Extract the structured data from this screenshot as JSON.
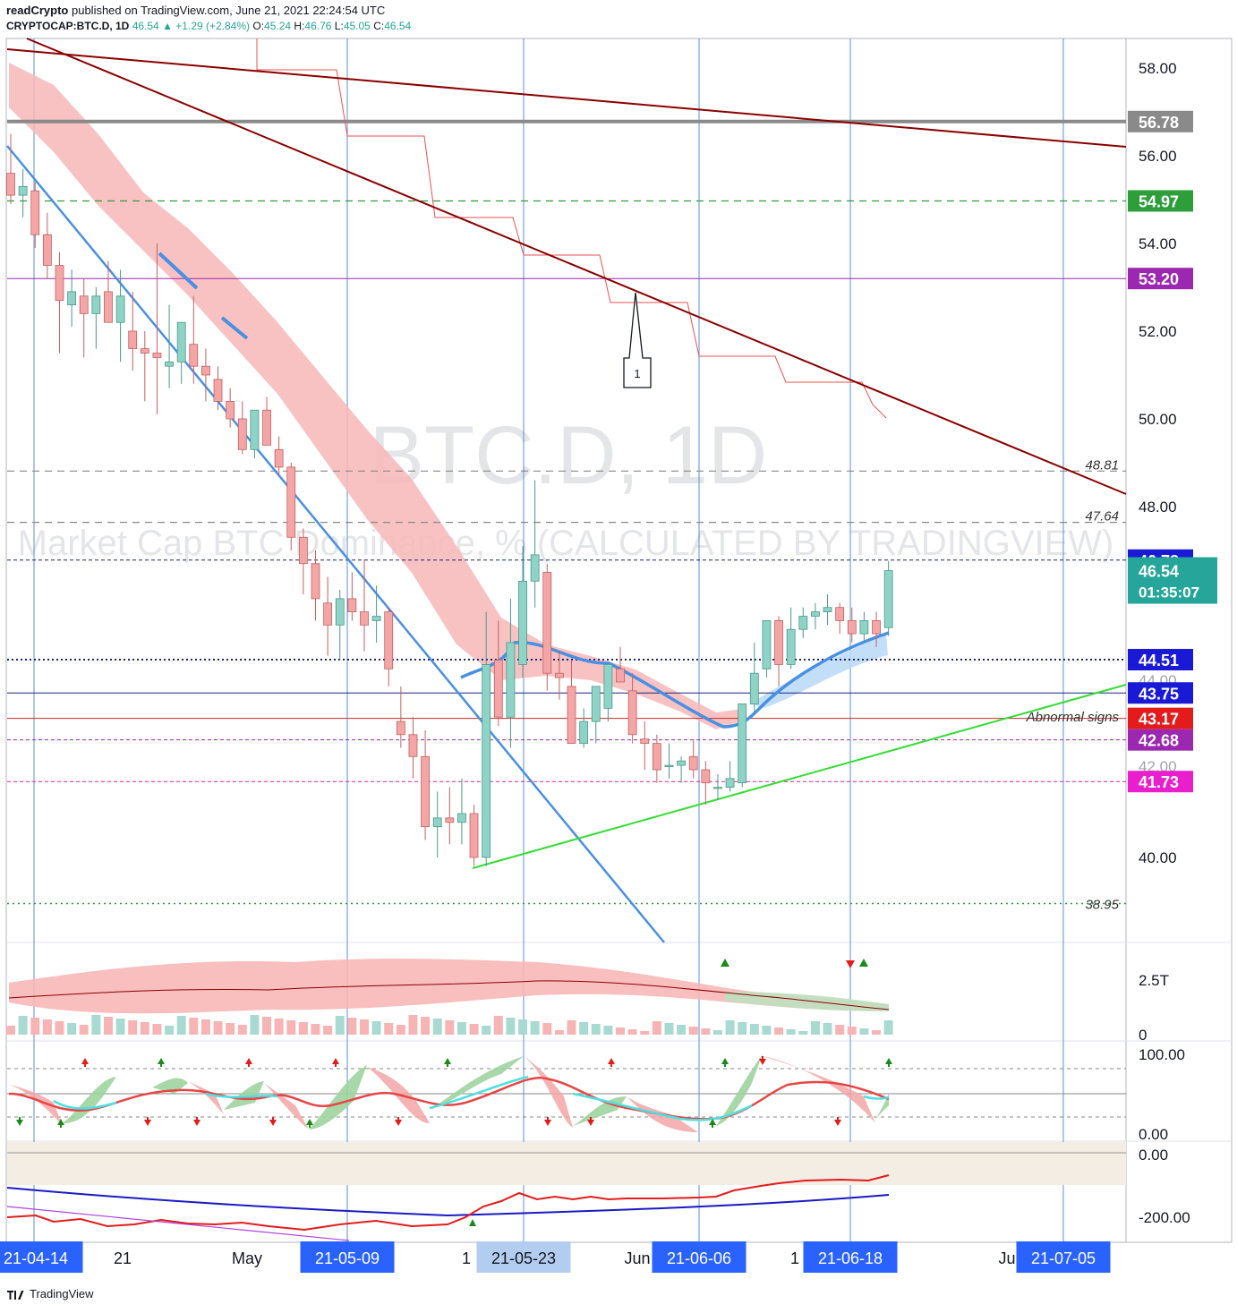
{
  "header": {
    "publisher": "readCrypto",
    "published_text": "published on TradingView.com, June 21, 2021 22:24:54 UTC",
    "symbol": "CRYPTOCAP:BTC.D, 1D",
    "last": "46.54",
    "change": "+1.29 (+2.84%)",
    "o_label": "O:",
    "o": "45.24",
    "h_label": "H:",
    "h": "46.76",
    "l_label": "L:",
    "l": "45.05",
    "c_label": "C:",
    "c": "46.54"
  },
  "footer": {
    "brand": "TradingView"
  },
  "colors": {
    "up": "#26a69a",
    "down": "#ef5350",
    "up_candle": "#8fd3c6",
    "down_candle": "#f4a6a6",
    "trend_dark": "#8b0000",
    "trend_blue": "#4a90e2",
    "trend_green": "#33dd33",
    "grey_level": "#8a8a8a",
    "purple": "#9c27b0",
    "magenta": "#e91ecc"
  },
  "chart_data": [
    {
      "type": "candlestick",
      "title": "BTC.D, 1D",
      "subtitle": "Market Cap BTC Dominance, % (CALCULATED BY TRADINGVIEW)",
      "ylim": [
        38.0,
        58.6
      ],
      "y_ticks": [
        "58.00",
        "56.00",
        "54.00",
        "52.00",
        "50.00",
        "48.00",
        "40.00"
      ],
      "x_ticks": [
        "21-04-14",
        "21",
        "May",
        "21-05-09",
        "1",
        "21-05-23",
        "Jun",
        "21-06-06",
        "1",
        "21-06-18",
        "Ju",
        "21-07-05"
      ],
      "highlighted_x_ticks": [
        "21-04-14",
        "21-05-09",
        "21-05-23",
        "21-06-06",
        "21-06-18",
        "21-07-05"
      ],
      "candles": [
        {
          "o": 55.6,
          "h": 56.5,
          "l": 54.9,
          "c": 55.1
        },
        {
          "o": 55.1,
          "h": 55.7,
          "l": 54.6,
          "c": 55.3
        },
        {
          "o": 55.2,
          "h": 55.4,
          "l": 53.9,
          "c": 54.2
        },
        {
          "o": 54.2,
          "h": 54.7,
          "l": 53.2,
          "c": 53.5
        },
        {
          "o": 53.5,
          "h": 53.8,
          "l": 51.5,
          "c": 52.7
        },
        {
          "o": 52.6,
          "h": 53.4,
          "l": 52.1,
          "c": 52.9
        },
        {
          "o": 52.8,
          "h": 53.2,
          "l": 51.4,
          "c": 52.4
        },
        {
          "o": 52.4,
          "h": 53.0,
          "l": 51.6,
          "c": 52.8
        },
        {
          "o": 52.9,
          "h": 53.6,
          "l": 52.3,
          "c": 52.2
        },
        {
          "o": 52.2,
          "h": 53.4,
          "l": 51.3,
          "c": 52.8
        },
        {
          "o": 52.0,
          "h": 52.9,
          "l": 51.1,
          "c": 51.6
        },
        {
          "o": 51.6,
          "h": 52.0,
          "l": 50.4,
          "c": 51.5
        },
        {
          "o": 51.5,
          "h": 54.0,
          "l": 50.1,
          "c": 51.4
        },
        {
          "o": 51.2,
          "h": 52.6,
          "l": 50.7,
          "c": 51.3
        },
        {
          "o": 51.3,
          "h": 52.2,
          "l": 50.8,
          "c": 52.2
        },
        {
          "o": 51.7,
          "h": 52.8,
          "l": 50.8,
          "c": 51.2
        },
        {
          "o": 51.2,
          "h": 51.6,
          "l": 50.4,
          "c": 51.0
        },
        {
          "o": 50.9,
          "h": 51.2,
          "l": 50.2,
          "c": 50.4
        },
        {
          "o": 50.4,
          "h": 50.7,
          "l": 49.8,
          "c": 50.0
        },
        {
          "o": 50.0,
          "h": 50.4,
          "l": 49.2,
          "c": 49.3
        },
        {
          "o": 49.3,
          "h": 50.2,
          "l": 49.1,
          "c": 50.2
        },
        {
          "o": 50.2,
          "h": 50.5,
          "l": 49.4,
          "c": 49.4
        },
        {
          "o": 49.3,
          "h": 49.6,
          "l": 48.7,
          "c": 48.9
        },
        {
          "o": 48.9,
          "h": 49.0,
          "l": 47.0,
          "c": 47.3
        },
        {
          "o": 47.3,
          "h": 47.5,
          "l": 46.0,
          "c": 46.7
        },
        {
          "o": 46.7,
          "h": 47.0,
          "l": 45.4,
          "c": 45.9
        },
        {
          "o": 45.8,
          "h": 46.4,
          "l": 44.6,
          "c": 45.3
        },
        {
          "o": 45.3,
          "h": 46.1,
          "l": 44.5,
          "c": 45.9
        },
        {
          "o": 45.9,
          "h": 46.5,
          "l": 45.4,
          "c": 45.6
        },
        {
          "o": 45.6,
          "h": 46.8,
          "l": 44.7,
          "c": 45.3
        },
        {
          "o": 45.4,
          "h": 46.2,
          "l": 44.9,
          "c": 45.5
        },
        {
          "o": 45.6,
          "h": 45.7,
          "l": 43.9,
          "c": 44.3
        },
        {
          "o": 43.1,
          "h": 43.9,
          "l": 42.5,
          "c": 42.8
        },
        {
          "o": 42.8,
          "h": 43.2,
          "l": 41.8,
          "c": 42.3
        },
        {
          "o": 42.3,
          "h": 42.9,
          "l": 40.4,
          "c": 40.7
        },
        {
          "o": 40.7,
          "h": 41.5,
          "l": 40.0,
          "c": 40.9
        },
        {
          "o": 40.9,
          "h": 41.6,
          "l": 40.3,
          "c": 40.8
        },
        {
          "o": 40.8,
          "h": 41.8,
          "l": 40.3,
          "c": 41.0
        },
        {
          "o": 41.0,
          "h": 41.2,
          "l": 39.8,
          "c": 40.0
        },
        {
          "o": 40.0,
          "h": 45.6,
          "l": 39.8,
          "c": 44.4
        },
        {
          "o": 44.5,
          "h": 45.4,
          "l": 43.0,
          "c": 43.2
        },
        {
          "o": 43.2,
          "h": 45.9,
          "l": 42.5,
          "c": 44.9
        },
        {
          "o": 44.4,
          "h": 47.1,
          "l": 44.1,
          "c": 46.3
        },
        {
          "o": 46.3,
          "h": 48.6,
          "l": 45.7,
          "c": 46.9
        },
        {
          "o": 46.5,
          "h": 46.7,
          "l": 43.8,
          "c": 44.2
        },
        {
          "o": 44.2,
          "h": 44.7,
          "l": 43.6,
          "c": 44.1
        },
        {
          "o": 43.9,
          "h": 44.5,
          "l": 42.6,
          "c": 42.6
        },
        {
          "o": 42.6,
          "h": 43.4,
          "l": 42.5,
          "c": 43.1
        },
        {
          "o": 43.1,
          "h": 43.9,
          "l": 42.6,
          "c": 43.9
        },
        {
          "o": 43.4,
          "h": 44.4,
          "l": 43.1,
          "c": 44.4
        },
        {
          "o": 44.3,
          "h": 44.8,
          "l": 44.0,
          "c": 44.0
        },
        {
          "o": 43.8,
          "h": 44.2,
          "l": 42.6,
          "c": 42.8
        },
        {
          "o": 42.7,
          "h": 43.1,
          "l": 42.0,
          "c": 42.6
        },
        {
          "o": 42.6,
          "h": 42.8,
          "l": 41.7,
          "c": 42.0
        },
        {
          "o": 42.1,
          "h": 42.6,
          "l": 41.8,
          "c": 42.1
        },
        {
          "o": 42.1,
          "h": 42.3,
          "l": 41.7,
          "c": 42.2
        },
        {
          "o": 42.3,
          "h": 42.7,
          "l": 41.8,
          "c": 42.0
        },
        {
          "o": 42.0,
          "h": 42.2,
          "l": 41.2,
          "c": 41.7
        },
        {
          "o": 41.6,
          "h": 41.9,
          "l": 41.3,
          "c": 41.6
        },
        {
          "o": 41.6,
          "h": 42.2,
          "l": 41.5,
          "c": 41.8
        },
        {
          "o": 41.7,
          "h": 43.5,
          "l": 41.6,
          "c": 43.5
        },
        {
          "o": 43.5,
          "h": 44.9,
          "l": 43.3,
          "c": 44.2
        },
        {
          "o": 44.3,
          "h": 45.4,
          "l": 44.1,
          "c": 45.4
        },
        {
          "o": 45.4,
          "h": 45.5,
          "l": 43.9,
          "c": 44.4
        },
        {
          "o": 44.4,
          "h": 45.7,
          "l": 44.3,
          "c": 45.2
        },
        {
          "o": 45.2,
          "h": 45.7,
          "l": 45.0,
          "c": 45.5
        },
        {
          "o": 45.5,
          "h": 45.8,
          "l": 45.2,
          "c": 45.6
        },
        {
          "o": 45.6,
          "h": 46.0,
          "l": 45.3,
          "c": 45.7
        },
        {
          "o": 45.7,
          "h": 45.8,
          "l": 45.1,
          "c": 45.4
        },
        {
          "o": 45.4,
          "h": 45.7,
          "l": 44.9,
          "c": 45.1
        },
        {
          "o": 45.1,
          "h": 45.6,
          "l": 44.9,
          "c": 45.4
        },
        {
          "o": 45.4,
          "h": 45.6,
          "l": 44.8,
          "c": 45.1
        },
        {
          "o": 45.24,
          "h": 46.76,
          "l": 45.05,
          "c": 46.54
        }
      ],
      "levels": [
        {
          "value": 56.78,
          "label": "56.78",
          "style": "grey-thick"
        },
        {
          "value": 54.97,
          "label": "54.97",
          "style": "green-dash"
        },
        {
          "value": 53.2,
          "label": "53.20",
          "style": "purple-solid"
        },
        {
          "value": 48.81,
          "label": "48.81",
          "style": "grey-dash"
        },
        {
          "value": 47.64,
          "label": "47.64",
          "style": "grey-dash"
        },
        {
          "value": 46.78,
          "label": "46.78",
          "style": "navy-dash"
        },
        {
          "value": 44.51,
          "label": "44.51",
          "style": "navy-dot"
        },
        {
          "value": 43.75,
          "label": "43.75",
          "style": "navy-solid"
        },
        {
          "value": 43.17,
          "label": "43.17",
          "style": "red-solid"
        },
        {
          "value": 42.68,
          "label": "42.68",
          "style": "purple-dash"
        },
        {
          "value": 41.73,
          "label": "41.73",
          "style": "magenta-dash"
        },
        {
          "value": 38.95,
          "label": "38.95",
          "style": "green-dot"
        }
      ],
      "last_price": {
        "value": "46.54",
        "countdown": "01:35:07"
      },
      "annotations": [
        {
          "text": "1"
        },
        {
          "text": "Abnormal signs"
        }
      ]
    },
    {
      "type": "volume",
      "y_ticks": [
        "2.5T",
        "0"
      ]
    },
    {
      "type": "oscillator",
      "y_ticks": [
        "100.00",
        "0.00"
      ]
    },
    {
      "type": "line",
      "y_ticks": [
        "0.00",
        "-200.00"
      ]
    }
  ]
}
